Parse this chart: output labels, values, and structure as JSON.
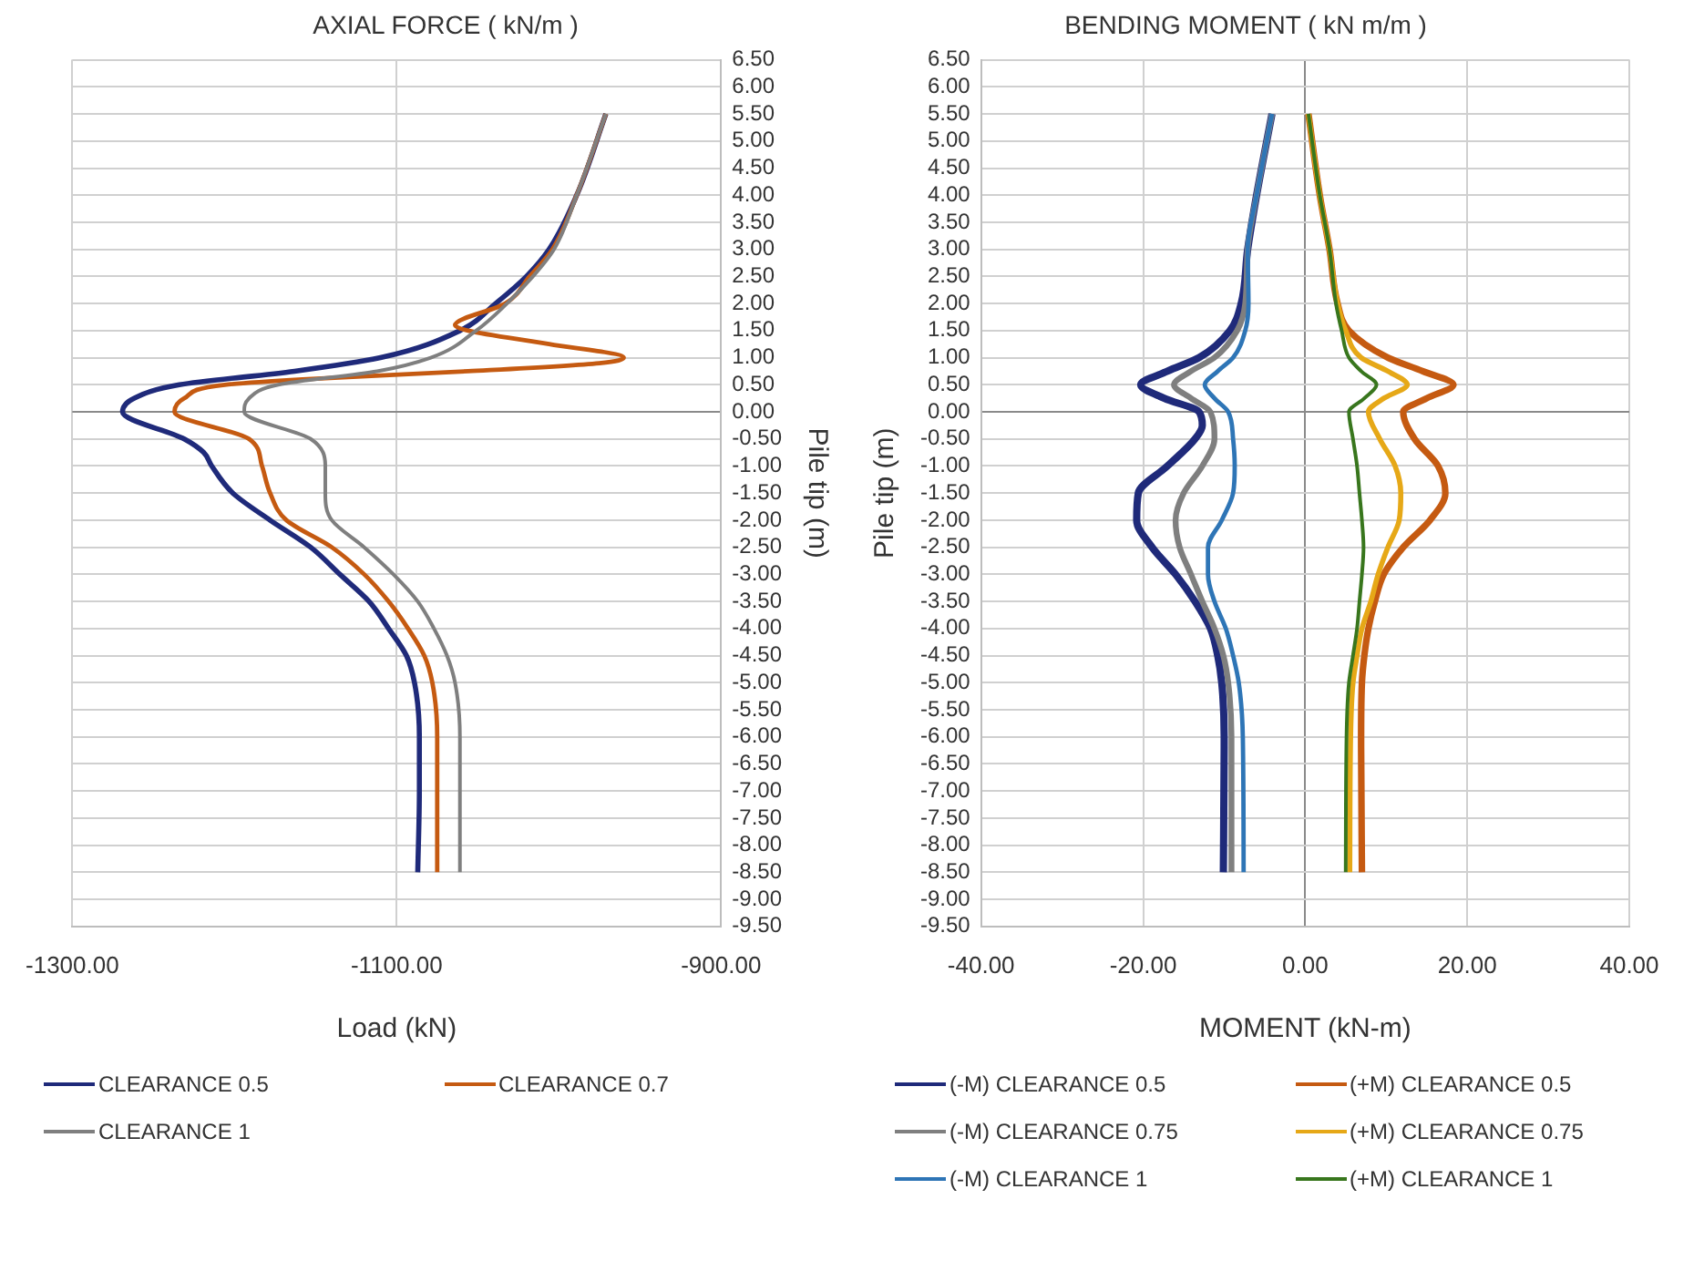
{
  "chart_data": [
    {
      "type": "line",
      "title": "AXIAL FORCE ( kN/m )",
      "xlabel": "Load (kN)",
      "ylabel": "Pile tip (m)",
      "xlim": [
        -1300,
        -900
      ],
      "xticks": [
        {
          "value": -1300,
          "label": "-1300.00"
        },
        {
          "value": -1100,
          "label": "-1100.00"
        },
        {
          "value": -900,
          "label": "-900.00"
        }
      ],
      "ylim": [
        -9.5,
        6.5
      ],
      "yticks": [
        {
          "value": 6.5,
          "label": "6.50"
        },
        {
          "value": 6,
          "label": "6.00"
        },
        {
          "value": 5.5,
          "label": "5.50"
        },
        {
          "value": 5,
          "label": "5.00"
        },
        {
          "value": 4.5,
          "label": "4.50"
        },
        {
          "value": 4,
          "label": "4.00"
        },
        {
          "value": 3.5,
          "label": "3.50"
        },
        {
          "value": 3,
          "label": "3.00"
        },
        {
          "value": 2.5,
          "label": "2.50"
        },
        {
          "value": 2,
          "label": "2.00"
        },
        {
          "value": 1.5,
          "label": "1.50"
        },
        {
          "value": 1,
          "label": "1.00"
        },
        {
          "value": 0.5,
          "label": "0.50"
        },
        {
          "value": 0,
          "label": "0.00"
        },
        {
          "value": -0.5,
          "label": "-0.50"
        },
        {
          "value": -1,
          "label": "-1.00"
        },
        {
          "value": -1.5,
          "label": "-1.50"
        },
        {
          "value": -2,
          "label": "-2.00"
        },
        {
          "value": -2.5,
          "label": "-2.50"
        },
        {
          "value": -3,
          "label": "-3.00"
        },
        {
          "value": -3.5,
          "label": "-3.50"
        },
        {
          "value": -4,
          "label": "-4.00"
        },
        {
          "value": -4.5,
          "label": "-4.50"
        },
        {
          "value": -5,
          "label": "-5.00"
        },
        {
          "value": -5.5,
          "label": "-5.50"
        },
        {
          "value": -6,
          "label": "-6.00"
        },
        {
          "value": -6.5,
          "label": "-6.50"
        },
        {
          "value": -7,
          "label": "-7.00"
        },
        {
          "value": -7.5,
          "label": "-7.50"
        },
        {
          "value": -8,
          "label": "-8.00"
        },
        {
          "value": -8.5,
          "label": "-8.50"
        },
        {
          "value": -9,
          "label": "-9.00"
        },
        {
          "value": -9.5,
          "label": "-9.50"
        }
      ],
      "grid": true,
      "legend": "bottom",
      "marker": "none",
      "line_style": "solid",
      "series": [
        {
          "name": "CLEARANCE 0.5",
          "color": "#1f2a7a",
          "x": [
            -971,
            -989,
            -1006,
            -1020,
            -1039,
            -1061,
            -1110,
            -1163,
            -1234,
            -1262,
            -1269,
            -1231,
            -1219,
            -1214,
            -1201,
            -1178,
            -1153,
            -1135,
            -1117,
            -1105,
            -1094,
            -1089,
            -1086,
            -1086,
            -1087
          ],
          "values": [
            5.5,
            4,
            3,
            2.5,
            2,
            1.5,
            1,
            0.75,
            0.5,
            0.25,
            0,
            -0.5,
            -0.75,
            -1,
            -1.5,
            -2,
            -2.5,
            -3,
            -3.5,
            -4,
            -4.5,
            -5,
            -6,
            -7,
            -8.5
          ]
        },
        {
          "name": "CLEARANCE 0.7",
          "color": "#c55a11",
          "x": [
            -971,
            -989,
            -1004,
            -1018,
            -1033,
            -1064,
            -1056,
            -1006,
            -960,
            -975,
            -1056,
            -1158,
            -1206,
            -1231,
            -1237,
            -1191,
            -1183,
            -1178,
            -1168,
            -1140,
            -1120,
            -1105,
            -1093,
            -1083,
            -1078,
            -1075,
            -1075
          ],
          "values": [
            5.5,
            4,
            3,
            2.5,
            2,
            1.6,
            1.5,
            1.25,
            1,
            0.9,
            0.75,
            0.6,
            0.5,
            0.25,
            0,
            -0.5,
            -1,
            -1.5,
            -2,
            -2.5,
            -3,
            -3.5,
            -4,
            -4.5,
            -5,
            -6,
            -8.5
          ]
        },
        {
          "name": "CLEARANCE 1",
          "color": "#7f7f7f",
          "x": [
            -971,
            -989,
            -1003,
            -1016,
            -1032,
            -1051,
            -1079,
            -1112,
            -1173,
            -1191,
            -1194,
            -1153,
            -1144,
            -1144,
            -1140,
            -1120,
            -1102,
            -1087,
            -1077,
            -1069,
            -1064,
            -1061,
            -1061
          ],
          "values": [
            5.5,
            4,
            3,
            2.5,
            2,
            1.5,
            1,
            0.75,
            0.5,
            0.25,
            0,
            -0.5,
            -1,
            -1.5,
            -2,
            -2.5,
            -3,
            -3.5,
            -4,
            -4.5,
            -5,
            -6,
            -8.5
          ]
        }
      ]
    },
    {
      "type": "line",
      "title": "BENDING MOMENT ( kN m/m )",
      "xlabel": "MOMENT (kN-m)",
      "ylabel": "Pile tip (m)",
      "xlim": [
        -40,
        40
      ],
      "xticks": [
        {
          "value": -40,
          "label": "-40.00"
        },
        {
          "value": -20,
          "label": "-20.00"
        },
        {
          "value": 0,
          "label": "0.00"
        },
        {
          "value": 20,
          "label": "20.00"
        },
        {
          "value": 40,
          "label": "40.00"
        }
      ],
      "ylim": [
        -9.5,
        6.5
      ],
      "yticks": [
        {
          "value": 6.5,
          "label": "6.50"
        },
        {
          "value": 6,
          "label": "6.00"
        },
        {
          "value": 5.5,
          "label": "5.50"
        },
        {
          "value": 5,
          "label": "5.00"
        },
        {
          "value": 4.5,
          "label": "4.50"
        },
        {
          "value": 4,
          "label": "4.00"
        },
        {
          "value": 3.5,
          "label": "3.50"
        },
        {
          "value": 3,
          "label": "3.00"
        },
        {
          "value": 2.5,
          "label": "2.50"
        },
        {
          "value": 2,
          "label": "2.00"
        },
        {
          "value": 1.5,
          "label": "1.50"
        },
        {
          "value": 1,
          "label": "1.00"
        },
        {
          "value": 0.5,
          "label": "0.50"
        },
        {
          "value": 0,
          "label": "0.00"
        },
        {
          "value": -0.5,
          "label": "-0.50"
        },
        {
          "value": -1,
          "label": "-1.00"
        },
        {
          "value": -1.5,
          "label": "-1.50"
        },
        {
          "value": -2,
          "label": "-2.00"
        },
        {
          "value": -2.5,
          "label": "-2.50"
        },
        {
          "value": -3,
          "label": "-3.00"
        },
        {
          "value": -3.5,
          "label": "-3.50"
        },
        {
          "value": -4,
          "label": "-4.00"
        },
        {
          "value": -4.5,
          "label": "-4.50"
        },
        {
          "value": -5,
          "label": "-5.00"
        },
        {
          "value": -5.5,
          "label": "-5.50"
        },
        {
          "value": -6,
          "label": "-6.00"
        },
        {
          "value": -6.5,
          "label": "-6.50"
        },
        {
          "value": -7,
          "label": "-7.00"
        },
        {
          "value": -7.5,
          "label": "-7.50"
        },
        {
          "value": -8,
          "label": "-8.00"
        },
        {
          "value": -8.5,
          "label": "-8.50"
        },
        {
          "value": -9,
          "label": "-9.00"
        },
        {
          "value": -9.5,
          "label": "-9.50"
        }
      ],
      "grid": true,
      "legend": "bottom",
      "marker": "none",
      "line_style": "solid",
      "series": [
        {
          "name": "(-M) CLEARANCE 0.5",
          "color": "#1f2a7a",
          "x": [
            -4.1,
            -6,
            -7.1,
            -7.9,
            -9.3,
            -13.1,
            -17,
            -20.3,
            -17.4,
            -13.1,
            -12.7,
            -13.6,
            -17,
            -20.6,
            -20.8,
            -18.9,
            -16,
            -13.6,
            -11.7,
            -10.8,
            -10.3,
            -10,
            -10.1
          ],
          "values": [
            5.5,
            4,
            3,
            2,
            1.5,
            1,
            0.75,
            0.5,
            0.25,
            0,
            -0.25,
            -0.5,
            -1,
            -1.5,
            -2,
            -2.5,
            -3,
            -3.5,
            -4,
            -4.5,
            -5,
            -6,
            -8.5
          ]
        },
        {
          "name": "(+M) CLEARANCE 0.5",
          "color": "#c55a11",
          "x": [
            0.4,
            1.8,
            3,
            4,
            5.4,
            10.2,
            14.5,
            18.3,
            15,
            12.1,
            13.5,
            16.4,
            17.3,
            15.4,
            12.1,
            9.7,
            8.6,
            7.8,
            7.3,
            7,
            6.9,
            7
          ],
          "values": [
            5.5,
            4,
            3,
            2,
            1.5,
            1,
            0.75,
            0.5,
            0.25,
            0,
            -0.5,
            -1,
            -1.5,
            -2,
            -2.5,
            -3,
            -3.5,
            -4,
            -4.5,
            -5,
            -6,
            -8.5
          ]
        },
        {
          "name": "(-M) CLEARANCE 0.75",
          "color": "#7f7f7f",
          "x": [
            -4.1,
            -6,
            -7.1,
            -7.4,
            -8.4,
            -11.2,
            -14.1,
            -16.2,
            -14.1,
            -11.7,
            -11.2,
            -12.7,
            -15,
            -16,
            -15.5,
            -14.1,
            -12.7,
            -11.2,
            -10.1,
            -9.5,
            -9.1,
            -9.1
          ],
          "values": [
            5.5,
            4,
            3,
            2,
            1.5,
            1,
            0.75,
            0.5,
            0.25,
            0,
            -0.5,
            -1,
            -1.5,
            -2,
            -2.5,
            -3,
            -3.5,
            -4,
            -4.5,
            -5,
            -6,
            -8.5
          ]
        },
        {
          "name": "(+M) CLEARANCE 0.75",
          "color": "#e6a817",
          "x": [
            0.4,
            1.8,
            3,
            4,
            5,
            6.9,
            10.2,
            12.6,
            9.7,
            7.8,
            9.2,
            11.1,
            11.8,
            11.6,
            10.2,
            9,
            8.1,
            7,
            6.4,
            5.9,
            5.6,
            5.5
          ],
          "values": [
            5.5,
            4,
            3,
            2,
            1.5,
            1,
            0.75,
            0.5,
            0.25,
            0,
            -0.5,
            -1,
            -1.5,
            -2,
            -2.5,
            -3,
            -3.5,
            -4,
            -4.5,
            -5,
            -6,
            -8.5
          ]
        },
        {
          "name": "(-M) CLEARANCE 1",
          "color": "#2e75b6",
          "x": [
            -4.1,
            -6,
            -7.1,
            -7,
            -7.4,
            -8.9,
            -10.8,
            -12.4,
            -11.2,
            -9.5,
            -8.9,
            -8.7,
            -8.9,
            -10.3,
            -12,
            -12,
            -11.2,
            -9.8,
            -8.9,
            -8.2,
            -7.7,
            -7.6
          ],
          "values": [
            5.5,
            4,
            3,
            2,
            1.5,
            1,
            0.75,
            0.5,
            0.25,
            0,
            -0.5,
            -1,
            -1.5,
            -2,
            -2.5,
            -3,
            -3.5,
            -4,
            -4.5,
            -5,
            -6,
            -8.5
          ]
        },
        {
          "name": "(+M) CLEARANCE 1",
          "color": "#38761d",
          "x": [
            0.4,
            1.8,
            3,
            3.8,
            4.5,
            5.4,
            6.9,
            8.8,
            7.3,
            5.4,
            5.9,
            6.4,
            6.7,
            7,
            7.2,
            7,
            6.7,
            6.4,
            5.9,
            5.4,
            5.1,
            5
          ],
          "values": [
            5.5,
            4,
            3,
            2,
            1.5,
            1,
            0.75,
            0.5,
            0.25,
            0,
            -0.5,
            -1,
            -1.5,
            -2,
            -2.5,
            -3,
            -3.5,
            -4,
            -4.5,
            -5,
            -6,
            -8.5
          ]
        }
      ]
    }
  ]
}
